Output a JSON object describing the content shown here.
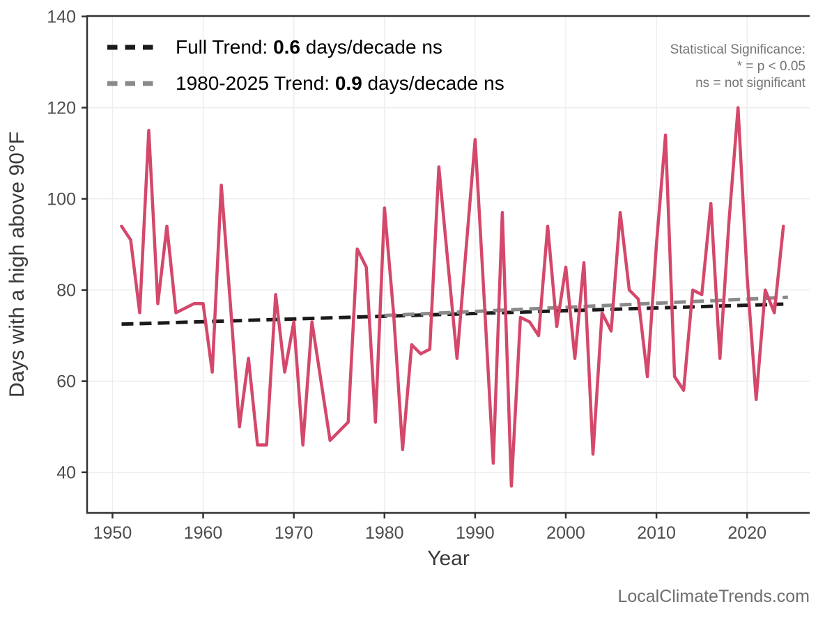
{
  "legend": {
    "items": [
      {
        "name": "full-trend",
        "prefix": "Full Trend: ",
        "value": "0.6",
        "suffix": " days/decade ns",
        "color": "#1a1a1a"
      },
      {
        "name": "recent-trend",
        "prefix": "1980-2025 Trend: ",
        "value": "0.9",
        "suffix": " days/decade ns",
        "color": "#8a8a8a"
      }
    ]
  },
  "stat_note": {
    "line1": "Statistical Significance:",
    "line2": "* = p < 0.05",
    "line3": "ns = not significant"
  },
  "watermark": "LocalClimateTrends.com",
  "chart_data": {
    "type": "line",
    "title": "",
    "xlabel": "Year",
    "ylabel": "Days with a high above 90°F",
    "x": [
      1951,
      1952,
      1953,
      1954,
      1955,
      1956,
      1957,
      1958,
      1959,
      1960,
      1961,
      1962,
      1963,
      1964,
      1965,
      1966,
      1967,
      1968,
      1969,
      1970,
      1971,
      1972,
      1973,
      1974,
      1975,
      1976,
      1977,
      1978,
      1979,
      1980,
      1981,
      1982,
      1983,
      1984,
      1985,
      1986,
      1987,
      1988,
      1989,
      1990,
      1991,
      1992,
      1993,
      1994,
      1995,
      1996,
      1997,
      1998,
      1999,
      2000,
      2001,
      2002,
      2003,
      2004,
      2005,
      2006,
      2007,
      2008,
      2009,
      2010,
      2011,
      2012,
      2013,
      2014,
      2015,
      2016,
      2017,
      2018,
      2019,
      2020,
      2021,
      2022,
      2023,
      2024
    ],
    "values": [
      94,
      91,
      75,
      115,
      77,
      94,
      75,
      76,
      77,
      77,
      62,
      103,
      77,
      50,
      65,
      46,
      46,
      79,
      62,
      73,
      46,
      73,
      60,
      47,
      49,
      51,
      89,
      85,
      51,
      98,
      75,
      45,
      68,
      66,
      67,
      107,
      86,
      65,
      89,
      113,
      78,
      42,
      97,
      37,
      74,
      73,
      70,
      94,
      72,
      85,
      65,
      86,
      44,
      75,
      71,
      97,
      80,
      78,
      61,
      90,
      114,
      61,
      58,
      80,
      79,
      99,
      65,
      95,
      120,
      83,
      56,
      80,
      75,
      94
    ],
    "series_color": "#d4486b",
    "trends": [
      {
        "name": "full-trend-line",
        "x1": 1951,
        "y1": 72.5,
        "x2": 2024,
        "y2": 76.9,
        "color": "#1a1a1a"
      },
      {
        "name": "recent-trend-line",
        "x1": 1980,
        "y1": 74.4,
        "x2": 2024.5,
        "y2": 78.4,
        "color": "#8a8a8a"
      }
    ],
    "xticks": [
      1950,
      1960,
      1970,
      1980,
      1990,
      2000,
      2010,
      2020
    ],
    "yticks": [
      40,
      60,
      80,
      100,
      120,
      140
    ],
    "xlim": [
      1947.2,
      2026.9
    ],
    "ylim": [
      31.1,
      140.1
    ],
    "grid": true,
    "grid_color": "#ededed",
    "axis_color": "#333333",
    "tick_label_color": "#4d4d4d",
    "axis_title_color": "#383838",
    "legend_position": "top-left"
  }
}
